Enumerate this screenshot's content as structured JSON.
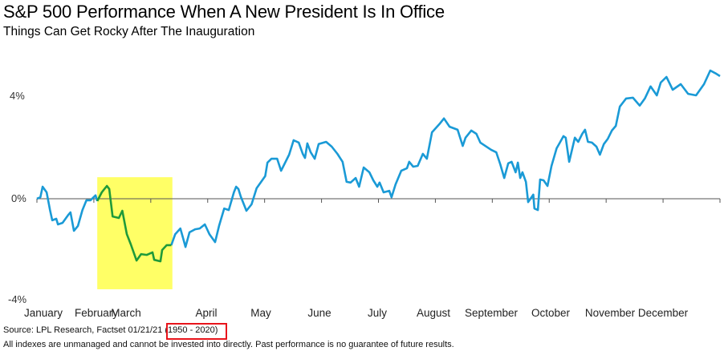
{
  "chart_data": {
    "type": "line",
    "title": "S&P 500 Performance When A New President Is In Office",
    "subtitle": "Things Can Get Rocky After The Inauguration",
    "xlabel": "",
    "ylabel": "",
    "x_unit": "months since start of year",
    "x_tick_labels": [
      "January",
      "February",
      "March",
      "April",
      "May",
      "June",
      "July",
      "August",
      "September",
      "October",
      "November",
      "December"
    ],
    "y_tick_labels": [
      "4%",
      "0%",
      "-4%"
    ],
    "y_ticks": [
      4,
      0,
      -4
    ],
    "ylim": [
      -4,
      5.2
    ],
    "xlim": [
      0,
      12
    ],
    "grid": false,
    "line_color": "#1a9ad6",
    "highlight": {
      "x_range": [
        1.06,
        2.38
      ],
      "y_range": [
        -3.53,
        0.84
      ],
      "fill": "#ffff66",
      "line_color": "#1f9a3a"
    },
    "points": [
      [
        0.0,
        0.0
      ],
      [
        0.06,
        0.06
      ],
      [
        0.1,
        0.47
      ],
      [
        0.17,
        0.25
      ],
      [
        0.23,
        -0.44
      ],
      [
        0.27,
        -0.84
      ],
      [
        0.34,
        -0.78
      ],
      [
        0.37,
        -1.0
      ],
      [
        0.45,
        -0.94
      ],
      [
        0.55,
        -0.63
      ],
      [
        0.59,
        -0.53
      ],
      [
        0.65,
        -1.25
      ],
      [
        0.72,
        -1.06
      ],
      [
        0.8,
        -0.44
      ],
      [
        0.87,
        -0.06
      ],
      [
        0.94,
        -0.06
      ],
      [
        1.03,
        0.13
      ],
      [
        1.06,
        -0.09
      ],
      [
        1.14,
        0.25
      ],
      [
        1.23,
        0.5
      ],
      [
        1.27,
        0.38
      ],
      [
        1.33,
        -0.69
      ],
      [
        1.44,
        -0.75
      ],
      [
        1.5,
        -0.47
      ],
      [
        1.58,
        -1.38
      ],
      [
        1.65,
        -1.78
      ],
      [
        1.75,
        -2.41
      ],
      [
        1.83,
        -2.16
      ],
      [
        1.93,
        -2.19
      ],
      [
        2.03,
        -2.09
      ],
      [
        2.06,
        -2.38
      ],
      [
        2.17,
        -2.44
      ],
      [
        2.2,
        -2.0
      ],
      [
        2.28,
        -1.81
      ],
      [
        2.36,
        -1.81
      ],
      [
        2.43,
        -1.38
      ],
      [
        2.52,
        -1.16
      ],
      [
        2.57,
        -1.56
      ],
      [
        2.61,
        -1.88
      ],
      [
        2.68,
        -1.31
      ],
      [
        2.78,
        -1.19
      ],
      [
        2.86,
        -1.16
      ],
      [
        2.95,
        -1.0
      ],
      [
        3.03,
        -1.38
      ],
      [
        3.13,
        -1.69
      ],
      [
        3.2,
        -1.06
      ],
      [
        3.29,
        -0.38
      ],
      [
        3.37,
        -0.44
      ],
      [
        3.46,
        0.25
      ],
      [
        3.5,
        0.47
      ],
      [
        3.54,
        0.38
      ],
      [
        3.58,
        0.09
      ],
      [
        3.68,
        -0.47
      ],
      [
        3.77,
        -0.22
      ],
      [
        3.86,
        0.41
      ],
      [
        4.01,
        0.88
      ],
      [
        4.05,
        1.41
      ],
      [
        4.12,
        1.56
      ],
      [
        4.22,
        1.56
      ],
      [
        4.29,
        1.09
      ],
      [
        4.43,
        1.72
      ],
      [
        4.51,
        2.28
      ],
      [
        4.6,
        2.19
      ],
      [
        4.67,
        1.75
      ],
      [
        4.71,
        1.59
      ],
      [
        4.75,
        2.16
      ],
      [
        4.81,
        1.81
      ],
      [
        4.88,
        1.56
      ],
      [
        4.95,
        2.13
      ],
      [
        5.08,
        2.22
      ],
      [
        5.18,
        2.03
      ],
      [
        5.28,
        1.75
      ],
      [
        5.37,
        1.44
      ],
      [
        5.44,
        0.66
      ],
      [
        5.51,
        0.63
      ],
      [
        5.6,
        0.81
      ],
      [
        5.66,
        0.47
      ],
      [
        5.74,
        1.22
      ],
      [
        5.84,
        1.03
      ],
      [
        5.91,
        0.72
      ],
      [
        5.98,
        0.47
      ],
      [
        6.02,
        0.63
      ],
      [
        6.09,
        0.25
      ],
      [
        6.19,
        0.31
      ],
      [
        6.23,
        0.06
      ],
      [
        6.3,
        0.56
      ],
      [
        6.4,
        1.09
      ],
      [
        6.5,
        1.19
      ],
      [
        6.54,
        1.44
      ],
      [
        6.61,
        1.25
      ],
      [
        6.69,
        1.28
      ],
      [
        6.78,
        1.75
      ],
      [
        6.85,
        1.56
      ],
      [
        6.94,
        2.59
      ],
      [
        7.07,
        2.91
      ],
      [
        7.15,
        3.13
      ],
      [
        7.25,
        2.81
      ],
      [
        7.39,
        2.69
      ],
      [
        7.48,
        2.06
      ],
      [
        7.53,
        2.38
      ],
      [
        7.63,
        2.66
      ],
      [
        7.72,
        2.53
      ],
      [
        7.79,
        2.19
      ],
      [
        7.98,
        1.91
      ],
      [
        8.07,
        1.81
      ],
      [
        8.14,
        1.34
      ],
      [
        8.21,
        0.81
      ],
      [
        8.28,
        1.38
      ],
      [
        8.34,
        1.44
      ],
      [
        8.41,
        1.03
      ],
      [
        8.45,
        1.41
      ],
      [
        8.49,
        0.81
      ],
      [
        8.53,
        1.03
      ],
      [
        8.59,
        0.66
      ],
      [
        8.63,
        -0.13
      ],
      [
        8.72,
        0.16
      ],
      [
        8.74,
        -0.38
      ],
      [
        8.8,
        -0.44
      ],
      [
        8.84,
        0.75
      ],
      [
        8.9,
        0.72
      ],
      [
        8.97,
        0.5
      ],
      [
        9.04,
        1.28
      ],
      [
        9.13,
        1.97
      ],
      [
        9.18,
        2.16
      ],
      [
        9.25,
        2.44
      ],
      [
        9.29,
        2.38
      ],
      [
        9.35,
        1.44
      ],
      [
        9.45,
        2.38
      ],
      [
        9.51,
        2.22
      ],
      [
        9.58,
        2.53
      ],
      [
        9.63,
        2.69
      ],
      [
        9.68,
        2.22
      ],
      [
        9.75,
        2.19
      ],
      [
        9.83,
        2.03
      ],
      [
        9.89,
        1.72
      ],
      [
        9.96,
        2.13
      ],
      [
        10.03,
        2.34
      ],
      [
        10.1,
        2.66
      ],
      [
        10.17,
        2.84
      ],
      [
        10.24,
        3.59
      ],
      [
        10.35,
        3.91
      ],
      [
        10.47,
        3.94
      ],
      [
        10.59,
        3.63
      ],
      [
        10.68,
        3.91
      ],
      [
        10.78,
        4.38
      ],
      [
        10.89,
        4.03
      ],
      [
        10.96,
        4.53
      ],
      [
        11.06,
        4.75
      ],
      [
        11.17,
        4.25
      ],
      [
        11.31,
        4.47
      ],
      [
        11.44,
        4.09
      ],
      [
        11.58,
        4.03
      ],
      [
        11.72,
        4.47
      ],
      [
        11.83,
        5.0
      ],
      [
        11.93,
        4.88
      ],
      [
        12.0,
        4.78
      ]
    ]
  },
  "footer": {
    "source_prefix": "Source: LPL Research, Factset 01/21/21 ",
    "source_range": "(1950 - 2020)",
    "disclaimer": "All indexes are unmanaged and cannot be invested into directly. Past performance is no guarantee of future results.",
    "highlight_box_color": "#e8141b"
  }
}
